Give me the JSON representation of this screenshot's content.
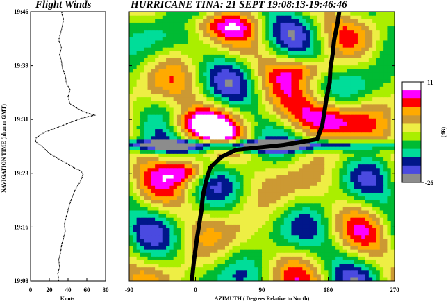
{
  "chart_data": [
    {
      "type": "line",
      "title": "Flight Winds",
      "xlabel": "Knots",
      "ylabel": "NAVIGATION TIME (hh:mm GMT)",
      "xlim": [
        0,
        80
      ],
      "x_ticks": [
        "0",
        "20",
        "40",
        "60",
        "80"
      ],
      "y_ticks": [
        "19:08",
        "19:16",
        "19:23",
        "19:31",
        "19:39",
        "19:46"
      ],
      "y_tick_minutes": [
        0,
        7.6,
        15.2,
        22.8,
        30.4,
        38.0
      ],
      "series": [
        {
          "time_min": [
            0,
            1,
            2,
            3,
            4,
            5,
            6,
            7,
            8,
            9,
            10,
            11,
            12,
            13,
            14,
            15,
            15.5,
            16,
            17,
            18,
            19,
            19.7,
            20.2,
            21,
            22,
            23,
            23.4,
            23.8,
            24.5,
            25,
            26,
            27,
            28,
            29,
            30,
            31,
            32,
            33,
            34,
            35,
            36,
            37,
            38
          ],
          "knots": [
            30,
            29,
            31,
            30,
            32,
            33,
            35,
            37,
            36,
            38,
            40,
            42,
            45,
            48,
            53,
            56,
            54,
            46,
            33,
            20,
            12,
            5,
            6,
            15,
            35,
            55,
            68,
            58,
            48,
            42,
            40,
            42,
            38,
            37,
            34,
            33,
            31,
            33,
            30,
            32,
            34,
            35,
            33
          ]
        }
      ]
    },
    {
      "type": "heatmap",
      "title": "HURRICANE TINA:  21 SEPT  19:08:13-19:46:46",
      "xlabel": "AZIMUTH ( Degrees Relative to North)",
      "xlim": [
        -90,
        270
      ],
      "x_ticks": [
        "-90",
        "0",
        "90",
        "180",
        "270"
      ],
      "colorbar": {
        "label": "(dB)",
        "max_label": "-11",
        "min_label": "-26",
        "range": [
          -26,
          -11
        ],
        "colors": [
          "#ffffff",
          "#ff00ff",
          "#ff0000",
          "#ffaa00",
          "#cc9933",
          "#eeee44",
          "#aaee00",
          "#00bb33",
          "#00dd99",
          "#00178a",
          "#4a4ae0",
          "#8c8c8c"
        ]
      },
      "track": {
        "time_min": [
          0,
          3,
          6,
          8,
          10,
          12,
          14,
          16,
          17.5,
          18.5,
          19.2,
          20,
          22,
          24,
          26,
          28,
          30,
          32,
          34,
          36,
          38
        ],
        "azimuth_deg": [
          -5,
          -2,
          2,
          5,
          8,
          10,
          14,
          20,
          35,
          55,
          120,
          165,
          172,
          175,
          178,
          182,
          183,
          186,
          188,
          192,
          195
        ]
      }
    }
  ]
}
